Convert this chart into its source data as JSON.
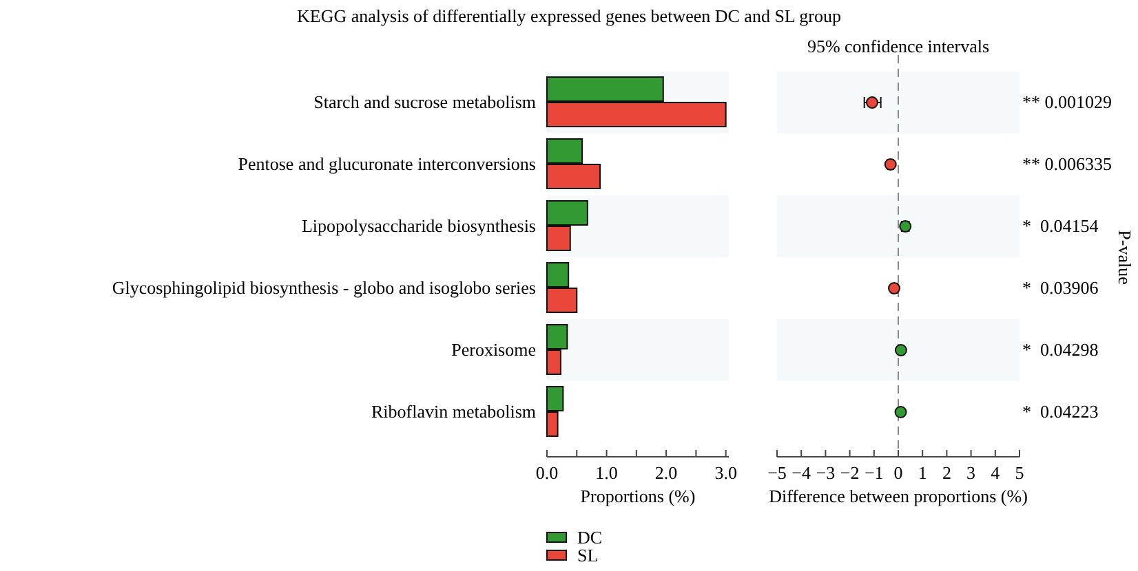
{
  "chart_data": [
    {
      "type": "bar",
      "orientation": "horizontal",
      "title": "KEGG analysis of differentially expressed genes between DC and SL group",
      "xlabel": "Proportions (%)",
      "categories": [
        "Starch and sucrose metabolism",
        "Pentose and glucuronate interconversions",
        "Lipopolysaccharide biosynthesis",
        "Glycosphingolipid biosynthesis - globo and isoglobo series",
        "Peroxisome",
        "Riboflavin metabolism"
      ],
      "series": [
        {
          "name": "DC",
          "color": "#339933",
          "values": [
            1.95,
            0.59,
            0.68,
            0.36,
            0.34,
            0.27
          ]
        },
        {
          "name": "SL",
          "color": "#e8473a",
          "values": [
            3.0,
            0.89,
            0.39,
            0.5,
            0.23,
            0.18
          ]
        }
      ],
      "xlim": [
        0,
        3.05
      ],
      "xticks": [
        {
          "value": 0,
          "label": "0.0"
        },
        {
          "value": 0.5,
          "label": null
        },
        {
          "value": 1,
          "label": "1.0"
        },
        {
          "value": 1.5,
          "label": null
        },
        {
          "value": 2,
          "label": "2.0"
        },
        {
          "value": 2.5,
          "label": null
        },
        {
          "value": 3,
          "label": "3.0"
        }
      ],
      "legend": "bottom left"
    },
    {
      "type": "scatter",
      "orientation": "horizontal",
      "subtitle": "95% confidence intervals",
      "xlabel": "Difference between proportions (%)",
      "y2label": "P-value",
      "tick_labels": "x",
      "categories": [
        null,
        null,
        null,
        null,
        null,
        null
      ],
      "values": [
        -1.08,
        -0.32,
        0.29,
        -0.17,
        0.11,
        0.1
      ],
      "colors": [
        "#e8473a",
        "#e8473a",
        "#339933",
        "#e8473a",
        "#339933",
        "#339933"
      ],
      "errors": [
        [
          -1.4,
          -0.72
        ],
        0.12,
        0.15,
        0.12,
        0.1,
        0.1
      ],
      "xlim": [
        -5,
        5
      ],
      "xticks": [
        {
          "value": -5,
          "label": "−5"
        },
        {
          "value": -4,
          "label": "−4"
        },
        {
          "value": -3,
          "label": "−3"
        },
        {
          "value": -2,
          "label": "−2"
        },
        {
          "value": -1,
          "label": "−1"
        },
        0,
        1,
        2,
        3,
        4,
        5
      ],
      "ref_lines": [
        {
          "axis": "x",
          "value": 0,
          "color": "#888888",
          "line_style": "dashed"
        }
      ],
      "annotations": [
        "** 0.001029",
        "** 0.006335",
        "*  0.04154",
        "*  0.03906",
        "*  0.04298",
        "*  0.04223"
      ]
    }
  ]
}
